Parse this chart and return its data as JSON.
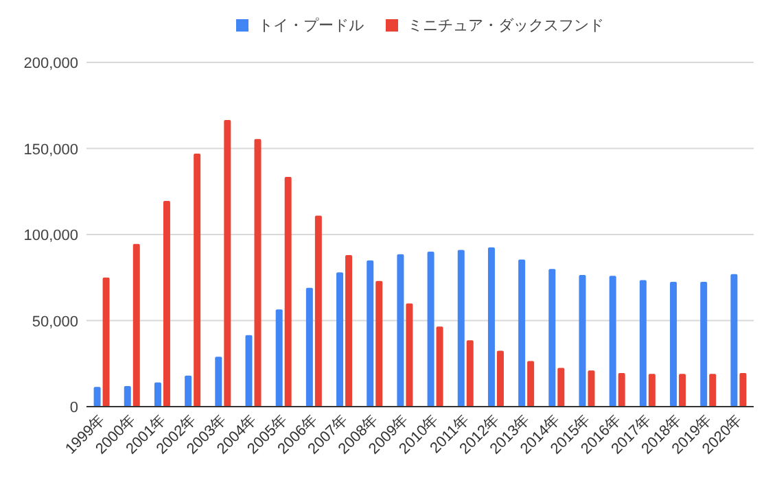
{
  "chart_data": {
    "type": "bar",
    "categories": [
      "1999年",
      "2000年",
      "2001年",
      "2002年",
      "2003年",
      "2004年",
      "2005年",
      "2006年",
      "2007年",
      "2008年",
      "2009年",
      "2010年",
      "2011年",
      "2012年",
      "2013年",
      "2014年",
      "2015年",
      "2016年",
      "2017年",
      "2018年",
      "2019年",
      "2020年"
    ],
    "series": [
      {
        "name": "トイ・プードル",
        "color": "#4285f4",
        "values": [
          11500,
          12000,
          14000,
          18000,
          29000,
          41500,
          56500,
          69000,
          78000,
          85000,
          88500,
          90000,
          91000,
          92500,
          85500,
          80000,
          76500,
          76000,
          73500,
          72500,
          72500,
          77000
        ]
      },
      {
        "name": "ミニチュア・ダックスフンド",
        "color": "#ea4335",
        "values": [
          75000,
          94500,
          119500,
          147000,
          166500,
          155500,
          133500,
          111000,
          88000,
          73000,
          60000,
          46500,
          38500,
          32500,
          26500,
          22500,
          21000,
          19500,
          19000,
          19000,
          19000,
          19500
        ]
      }
    ],
    "ylim": [
      0,
      200000
    ],
    "yticks": [
      {
        "value": 0,
        "label": "0"
      },
      {
        "value": 50000,
        "label": "50,000"
      },
      {
        "value": 100000,
        "label": "100,000"
      },
      {
        "value": 150000,
        "label": "150,000"
      },
      {
        "value": 200000,
        "label": "200,000"
      }
    ],
    "grid": "y",
    "legend": "top"
  }
}
